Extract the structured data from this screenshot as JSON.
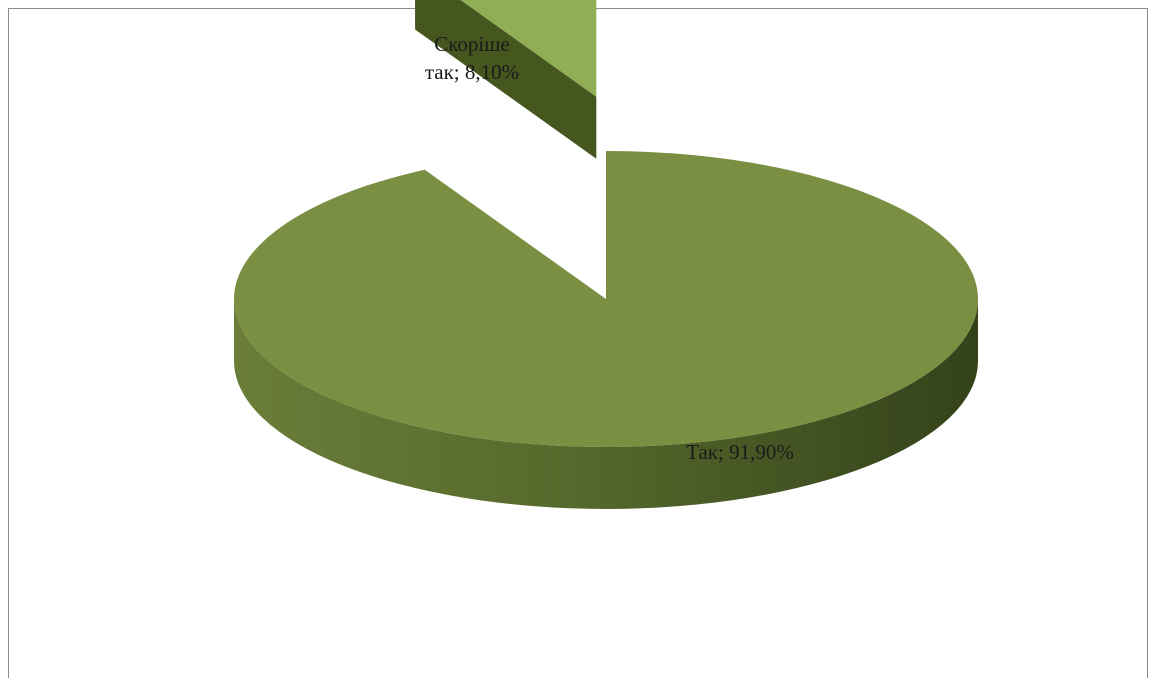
{
  "chart_data": {
    "type": "pie",
    "title": "",
    "slices": [
      {
        "name": "Скоріше так",
        "label_line1": "Скоріше",
        "label_line2": "так; 8,10%",
        "value": 8.1,
        "exploded": true
      },
      {
        "name": "Так",
        "label": "Так; 91,90%",
        "value": 91.9,
        "exploded": false
      }
    ],
    "style": "3d-exploded",
    "colors": {
      "main_top": "#7a8f42",
      "main_side_dark": "#3c4a1f",
      "main_side_mid": "#5f7336",
      "small_top": "#8fae55",
      "small_side": "#46561f"
    }
  }
}
